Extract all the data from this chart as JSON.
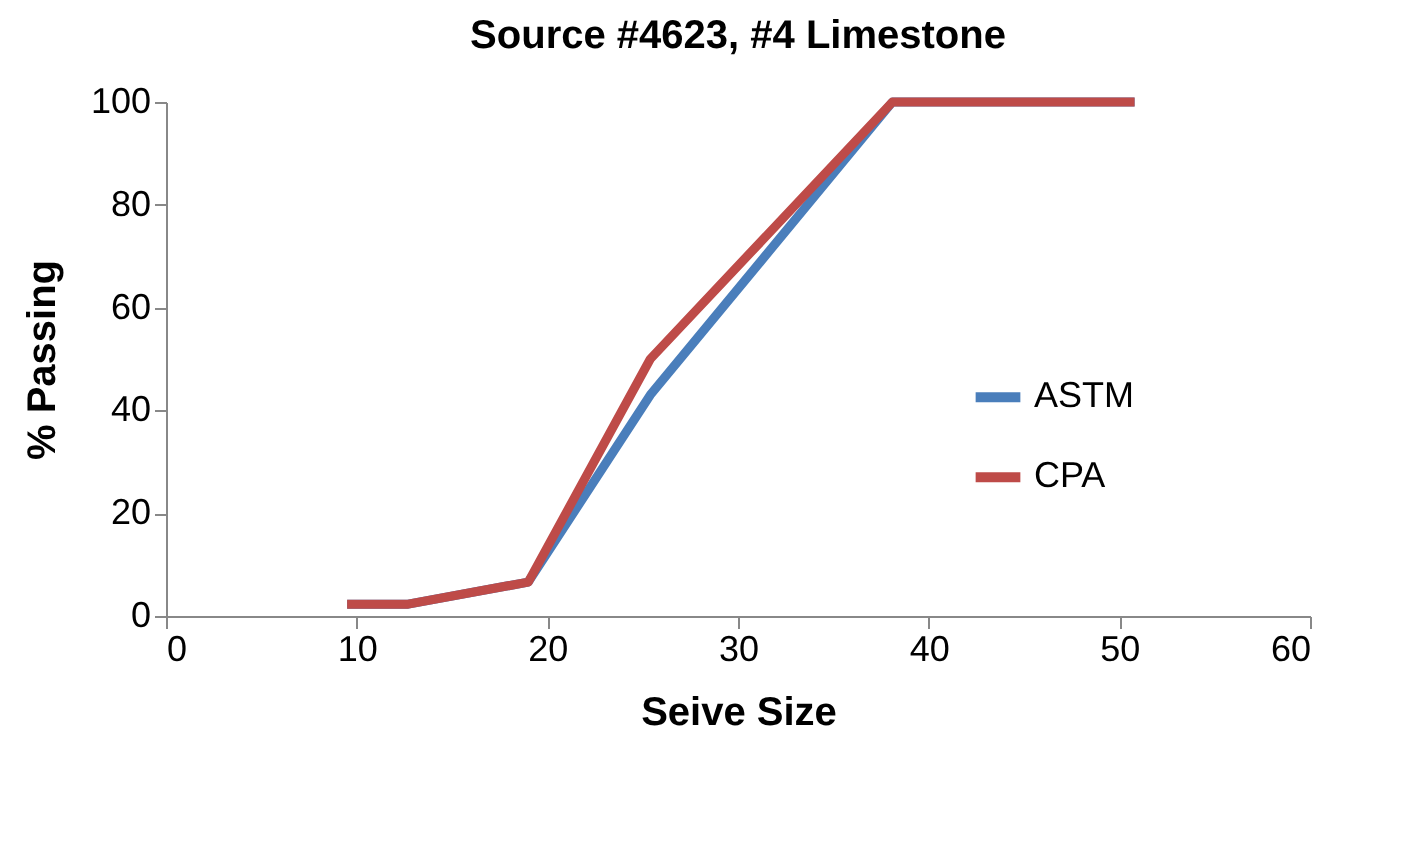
{
  "chart_data": {
    "type": "line",
    "title": "Source #4623, #4 Limestone",
    "xlabel": "Seive Size",
    "ylabel": "% Passing",
    "x": [
      9.5,
      12.7,
      19.0,
      25.4,
      38.1,
      50.8
    ],
    "series": [
      {
        "name": "ASTM",
        "color": "#4a7ebb",
        "values": [
          2.3,
          2.3,
          6.6,
          43,
          100,
          100
        ]
      },
      {
        "name": "CPA",
        "color": "#be4b48",
        "values": [
          2.3,
          2.3,
          6.6,
          50,
          100,
          100
        ]
      }
    ],
    "xlim": [
      0,
      60
    ],
    "xticks": [
      0,
      10,
      20,
      30,
      40,
      50,
      60
    ],
    "ylim": [
      0,
      100
    ],
    "yticks": [
      0,
      20,
      40,
      60,
      80,
      100
    ],
    "grid": false,
    "legend": "right",
    "marker": "none",
    "line_style": "solid"
  }
}
